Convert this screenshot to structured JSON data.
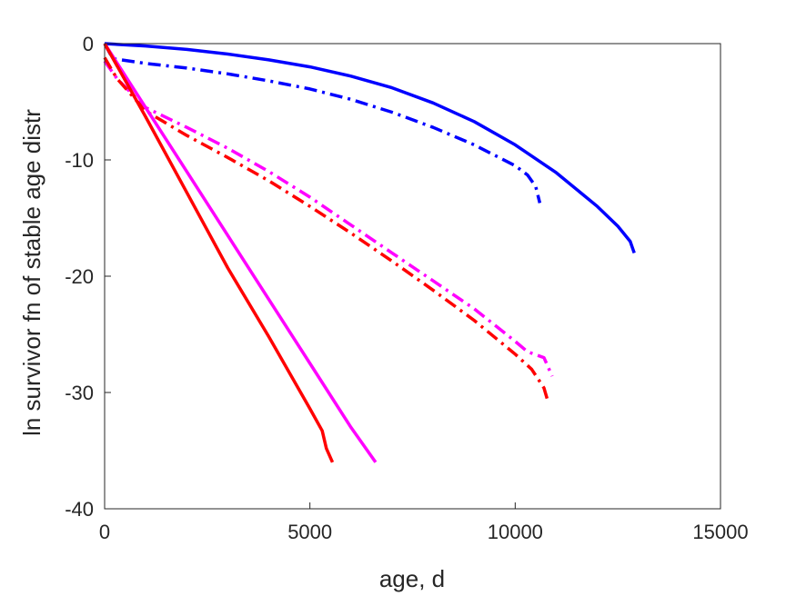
{
  "chart_data": {
    "type": "line",
    "title": "",
    "xlabel": "age, d",
    "ylabel": "ln survivor fn of stable age distr",
    "xlim": [
      0,
      15000
    ],
    "ylim": [
      -40,
      0
    ],
    "xticks": [
      0,
      5000,
      10000,
      15000
    ],
    "yticks": [
      0,
      -10,
      -20,
      -30,
      -40
    ],
    "xtick_labels": [
      "0",
      "5000",
      "10000",
      "15000"
    ],
    "ytick_labels": [
      "0",
      "-10",
      "-20",
      "-30",
      "-40"
    ],
    "grid": false,
    "legend": "none",
    "series": [
      {
        "color": "#0000ff",
        "style": "solid",
        "x": [
          0,
          1000,
          2000,
          3000,
          4000,
          5000,
          6000,
          7000,
          8000,
          9000,
          10000,
          11000,
          12000,
          12500,
          12800,
          12900
        ],
        "y": [
          0,
          -0.2,
          -0.5,
          -0.9,
          -1.4,
          -2.0,
          -2.8,
          -3.8,
          -5.1,
          -6.7,
          -8.7,
          -11.1,
          -14.0,
          -15.7,
          -17.0,
          -18.0
        ]
      },
      {
        "color": "#0000ff",
        "style": "dashdot",
        "x": [
          0,
          200,
          1000,
          2000,
          3000,
          4000,
          5000,
          6000,
          7000,
          8000,
          9000,
          10000,
          10300,
          10500,
          10600
        ],
        "y": [
          0,
          -1.3,
          -1.7,
          -2.1,
          -2.6,
          -3.2,
          -3.9,
          -4.8,
          -5.9,
          -7.2,
          -8.7,
          -10.5,
          -11.3,
          -12.3,
          -13.7
        ]
      },
      {
        "color": "#ff00ff",
        "style": "dashdot",
        "x": [
          0,
          300,
          1000,
          2000,
          3000,
          4000,
          5000,
          6000,
          7000,
          8000,
          9000,
          10000,
          10300,
          10700,
          10900
        ],
        "y": [
          -1.5,
          -3.0,
          -5.5,
          -7.2,
          -9.0,
          -11.0,
          -13.2,
          -15.6,
          -18.0,
          -20.4,
          -22.8,
          -25.6,
          -26.5,
          -27.0,
          -28.6
        ]
      },
      {
        "color": "#ff0000",
        "style": "dashdot",
        "x": [
          0,
          300,
          1000,
          2000,
          3000,
          4000,
          5000,
          6000,
          7000,
          8000,
          9000,
          10000,
          10400,
          10700,
          10800
        ],
        "y": [
          -1.2,
          -3.0,
          -5.8,
          -7.9,
          -9.8,
          -11.8,
          -14.0,
          -16.3,
          -18.7,
          -21.2,
          -23.8,
          -26.7,
          -28.0,
          -29.6,
          -30.8
        ]
      },
      {
        "color": "#ff00ff",
        "style": "solid",
        "x": [
          0,
          1000,
          2000,
          3000,
          4000,
          5000,
          6000,
          6600
        ],
        "y": [
          0,
          -5.5,
          -11.0,
          -16.5,
          -22.0,
          -27.5,
          -33.0,
          -36.0
        ]
      },
      {
        "color": "#ff0000",
        "style": "solid",
        "x": [
          0,
          1000,
          2000,
          3000,
          4000,
          5000,
          5300,
          5400,
          5550
        ],
        "y": [
          0,
          -6.3,
          -12.8,
          -19.3,
          -25.2,
          -31.4,
          -33.3,
          -34.8,
          -36.0
        ]
      }
    ]
  }
}
